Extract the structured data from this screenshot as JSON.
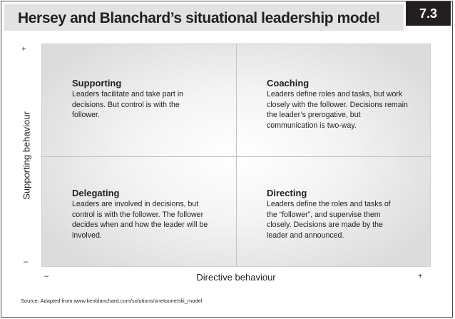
{
  "header": {
    "title": "Hersey and Blanchard’s situational leadership model",
    "figure_number": "7.3"
  },
  "axes": {
    "y_label": "Supporting behaviour",
    "y_high": "+",
    "y_low": "–",
    "x_label": "Directive behaviour",
    "x_low": "–",
    "x_high": "+"
  },
  "quadrants": {
    "supporting": {
      "title": "Supporting",
      "description": "Leaders facilitate and take part in decisions. But control is with the follower."
    },
    "coaching": {
      "title": "Coaching",
      "description": "Leaders define roles and tasks, but work closely with the follower. Decisions remain the leader’s prerogative, but communication is two-way."
    },
    "delegating": {
      "title": "Delegating",
      "description": "Leaders are involved in decisions, but control is with the follower. The follower decides when and how the leader will be involved."
    },
    "directing": {
      "title": "Directing",
      "description": "Leaders define the roles and tasks of the “follower”, and supervise them closely. Decisions are made by the leader and announced."
    }
  },
  "footer": {
    "source": "Source: Adapted from www.kenblanchard.com/solutions/onetoone/slii_model"
  },
  "colors": {
    "title_bar": "#e2e2e2",
    "badge": "#231f20",
    "text": "#231f20",
    "divider": "#c2c2c2"
  }
}
